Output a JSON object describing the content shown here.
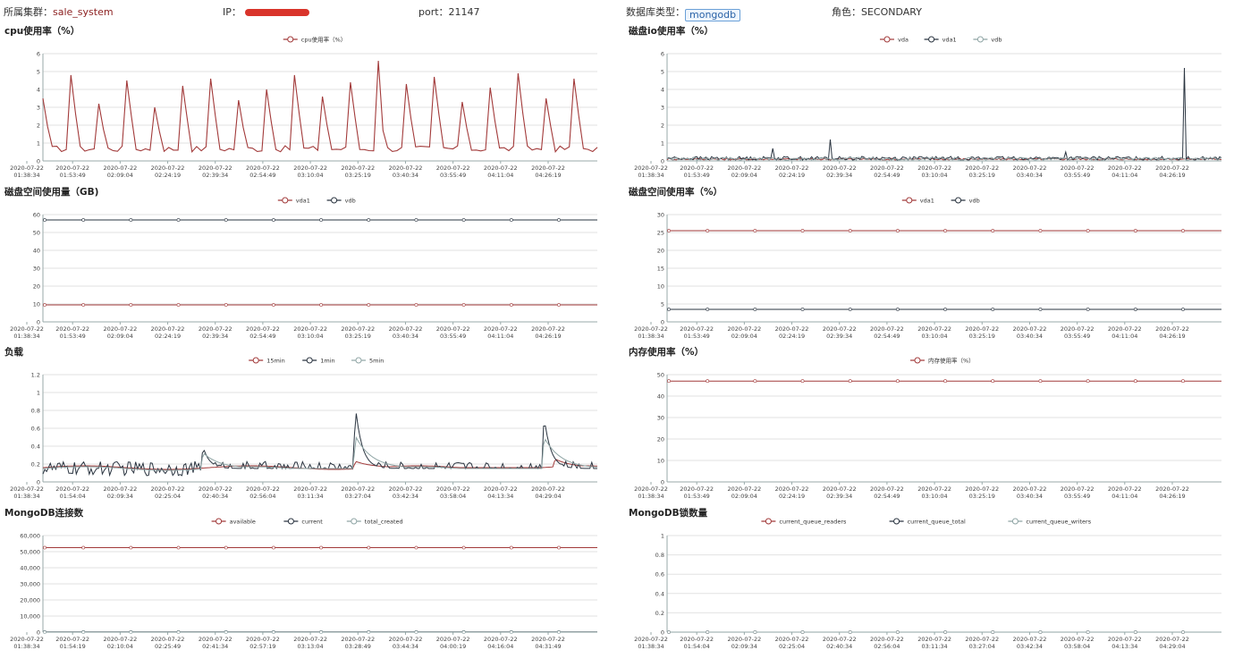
{
  "header": {
    "cluster_label": "所属集群：",
    "cluster_value": "sale_system",
    "ip_label": "IP：",
    "port_text": "port：21147",
    "dbtype_label": "数据库类型：",
    "dbtype_value": "mongodb",
    "role_text": "角色：SECONDARY"
  },
  "colors": {
    "red": "#a23a3a",
    "dark": "#2a3440",
    "gray": "#8fa5a5",
    "accent": "#8b1e1e"
  },
  "chart_data": [
    {
      "id": "cpu",
      "type": "line",
      "title": "cpu使用率（%）",
      "ylim": [
        0,
        6
      ],
      "yticks": [
        0,
        1,
        2,
        3,
        4,
        5,
        6
      ],
      "date": "2020-07-22",
      "xticks": [
        "01:38:34",
        "01:53:49",
        "02:09:04",
        "02:24:19",
        "02:39:34",
        "02:54:49",
        "03:10:04",
        "03:25:19",
        "03:40:34",
        "03:55:49",
        "04:11:04",
        "04:26:19"
      ],
      "series": [
        {
          "name": "cpu使用率（%）",
          "color": "#a23a3a",
          "pattern": "spikes",
          "base": 0.5,
          "peaks": [
            3.5,
            4.8,
            3.2,
            4.5,
            3.0,
            4.2,
            4.6,
            3.4,
            4.0,
            4.8,
            3.6,
            4.4,
            3.1,
            4.3,
            4.7,
            3.3,
            4.1,
            4.9,
            3.5,
            4.6
          ],
          "max": 5.6,
          "max_at": 0.6
        }
      ]
    },
    {
      "id": "diskio",
      "type": "line",
      "title": "磁盘io使用率（%）",
      "ylim": [
        0,
        6
      ],
      "yticks": [
        0,
        1,
        2,
        3,
        4,
        5,
        6
      ],
      "date": "2020-07-22",
      "xticks": [
        "01:38:34",
        "01:53:49",
        "02:09:04",
        "02:24:19",
        "02:39:34",
        "02:54:49",
        "03:10:04",
        "03:25:19",
        "03:40:34",
        "03:55:49",
        "04:11:04",
        "04:26:19"
      ],
      "series": [
        {
          "name": "vda",
          "color": "#a23a3a",
          "pattern": "flat_noise",
          "base": 0.1,
          "noise": 0.05
        },
        {
          "name": "vda1",
          "color": "#2a3440",
          "pattern": "flat_noise",
          "base": 0.15,
          "noise": 0.1,
          "spikes": [
            [
              0.19,
              0.7
            ],
            [
              0.295,
              1.2
            ],
            [
              0.72,
              0.5
            ],
            [
              0.933,
              5.2
            ]
          ]
        },
        {
          "name": "vdb",
          "color": "#8fa5a5",
          "pattern": "flat_noise",
          "base": 0.12,
          "noise": 0.08
        }
      ]
    },
    {
      "id": "diskspace",
      "type": "line",
      "title": "磁盘空间使用量（GB)",
      "ylim": [
        0,
        60
      ],
      "yticks": [
        0,
        10,
        20,
        30,
        40,
        50,
        60
      ],
      "date": "2020-07-22",
      "xticks": [
        "01:38:34",
        "01:53:49",
        "02:09:04",
        "02:24:19",
        "02:39:34",
        "02:54:49",
        "03:10:04",
        "03:25:19",
        "03:40:34",
        "03:55:49",
        "04:11:04",
        "04:26:19"
      ],
      "series": [
        {
          "name": "vda1",
          "color": "#a23a3a",
          "pattern": "flat",
          "value": 9.5
        },
        {
          "name": "vdb",
          "color": "#2a3440",
          "pattern": "flat",
          "value": 57
        }
      ]
    },
    {
      "id": "diskpct",
      "type": "line",
      "title": "磁盘空间使用率（%）",
      "ylim": [
        0,
        30
      ],
      "yticks": [
        0,
        5,
        10,
        15,
        20,
        25,
        30
      ],
      "date": "2020-07-22",
      "xticks": [
        "01:38:34",
        "01:53:49",
        "02:09:04",
        "02:24:19",
        "02:39:34",
        "02:54:49",
        "03:10:04",
        "03:25:19",
        "03:40:34",
        "03:55:49",
        "04:11:04",
        "04:26:19"
      ],
      "series": [
        {
          "name": "vda1",
          "color": "#a23a3a",
          "pattern": "flat",
          "value": 25.5
        },
        {
          "name": "vdb",
          "color": "#2a3440",
          "pattern": "flat",
          "value": 3.5
        }
      ]
    },
    {
      "id": "load",
      "type": "line",
      "title": "负载",
      "ylim": [
        0,
        1.2
      ],
      "yticks": [
        0,
        0.2,
        0.4,
        0.6,
        0.8,
        1,
        1.2
      ],
      "date": "2020-07-22",
      "xticks": [
        "01:38:34",
        "01:54:04",
        "02:09:34",
        "02:25:04",
        "02:40:34",
        "02:56:04",
        "03:11:34",
        "03:27:04",
        "03:42:34",
        "03:58:04",
        "04:13:34",
        "04:29:04"
      ],
      "series": [
        {
          "name": "15min",
          "color": "#a23a3a",
          "pattern": "smooth",
          "base": 0.16,
          "bumps": [
            [
              0.56,
              0.24
            ],
            [
              0.92,
              0.27
            ]
          ]
        },
        {
          "name": "1min",
          "color": "#2a3440",
          "pattern": "noisy",
          "base": 0.15,
          "noise": 0.08,
          "bumps": [
            [
              0.285,
              0.48
            ],
            [
              0.56,
              1.1
            ],
            [
              0.9,
              0.96
            ]
          ]
        },
        {
          "name": "5min",
          "color": "#8fa5a5",
          "pattern": "smooth",
          "base": 0.15,
          "bumps": [
            [
              0.285,
              0.35
            ],
            [
              0.56,
              0.56
            ],
            [
              0.9,
              0.55
            ]
          ]
        }
      ]
    },
    {
      "id": "mem",
      "type": "line",
      "title": "内存使用率（%）",
      "ylim": [
        0,
        50
      ],
      "yticks": [
        0,
        10,
        20,
        30,
        40,
        50
      ],
      "date": "2020-07-22",
      "xticks": [
        "01:38:34",
        "01:53:49",
        "02:09:04",
        "02:24:19",
        "02:39:34",
        "02:54:49",
        "03:10:04",
        "03:25:19",
        "03:40:34",
        "03:55:49",
        "04:11:04",
        "04:26:19"
      ],
      "series": [
        {
          "name": "内存使用率（%）",
          "color": "#a23a3a",
          "pattern": "flat",
          "value": 47
        }
      ]
    },
    {
      "id": "conn",
      "type": "line",
      "title": "MongoDB连接数",
      "ylim": [
        0,
        60000
      ],
      "yticks": [
        0,
        10000,
        20000,
        30000,
        40000,
        50000,
        60000
      ],
      "ytick_labels": [
        "0",
        "10,000",
        "20,000",
        "30,000",
        "40,000",
        "50,000",
        "60,000"
      ],
      "date": "2020-07-22",
      "xticks": [
        "01:38:34",
        "01:54:19",
        "02:10:04",
        "02:25:49",
        "02:41:34",
        "02:57:19",
        "03:13:04",
        "03:28:49",
        "03:44:34",
        "04:00:19",
        "04:16:04",
        "04:31:49"
      ],
      "series": [
        {
          "name": "available",
          "color": "#a23a3a",
          "pattern": "flat",
          "value": 52500
        },
        {
          "name": "current",
          "color": "#2a3440",
          "pattern": "flat",
          "value": 150
        },
        {
          "name": "total_created",
          "color": "#8fa5a5",
          "pattern": "flat",
          "value": 0
        }
      ]
    },
    {
      "id": "locks",
      "type": "line",
      "title": "MongoDB锁数量",
      "ylim": [
        0,
        1
      ],
      "yticks": [
        0,
        0.2,
        0.4,
        0.6,
        0.8,
        1
      ],
      "date": "2020-07-22",
      "xticks": [
        "01:38:34",
        "01:54:04",
        "02:09:34",
        "02:25:04",
        "02:40:34",
        "02:56:04",
        "03:11:34",
        "03:27:04",
        "03:42:34",
        "03:58:04",
        "04:13:34",
        "04:29:04"
      ],
      "series": [
        {
          "name": "current_queue_readers",
          "color": "#a23a3a",
          "pattern": "flat",
          "value": 0
        },
        {
          "name": "current_queue_total",
          "color": "#2a3440",
          "pattern": "flat",
          "value": 0
        },
        {
          "name": "current_queue_writers",
          "color": "#8fa5a5",
          "pattern": "flat",
          "value": 0
        }
      ]
    }
  ]
}
